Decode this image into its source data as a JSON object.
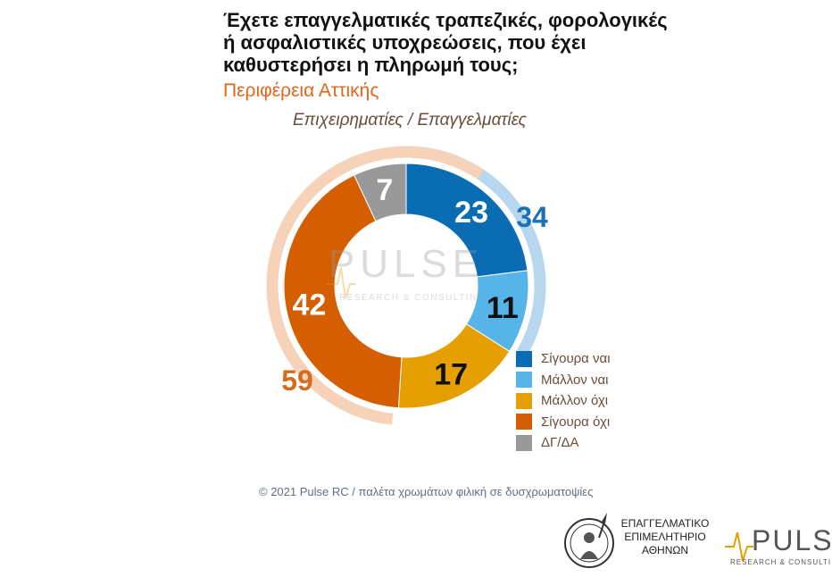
{
  "title": {
    "line1": "Έχετε επαγγελματικές τραπεζικές, φορολογικές",
    "line2": "ή ασφαλιστικές υποχρεώσεις, που έχει",
    "line3": "καθυστερήσει η πληρωμή τους;"
  },
  "subtitle": "Περιφέρεια Αττικής",
  "segment_label": "Επιχειρηματίες / Επαγγελματίες",
  "chart_data": {
    "type": "pie",
    "variant": "donut",
    "categories": [
      "Σίγουρα ναι",
      "Μάλλον ναι",
      "Μάλλον όχι",
      "Σίγουρα όχι",
      "ΔΓ/ΔΑ"
    ],
    "values": [
      23,
      11,
      17,
      42,
      7
    ],
    "colors": [
      "#0a6db3",
      "#56b4e9",
      "#e69f00",
      "#d55e00",
      "#999999"
    ],
    "value_label_colors": [
      "#ffffff",
      "#111111",
      "#111111",
      "#ffffff",
      "#ffffff"
    ],
    "outer_groups": [
      {
        "value": 34,
        "color": "#b6d7ee",
        "label_color": "#1b71b5"
      },
      {
        "value": 59,
        "color": "#f6d2b8",
        "label_color": "#d86a1e"
      }
    ],
    "legend_position": "bottom-right"
  },
  "footer": "© 2021 Pulse RC  /  παλέτα χρωμάτων φιλική σε δυσχρωματοψίες",
  "watermark": {
    "brand": "PULSE",
    "tag": "RESEARCH & CONSULTING"
  },
  "chamber": {
    "line1": "ΕΠΑΓΓΕΛΜΑΤΙΚΟ",
    "line2": "ΕΠΙΜΕΛΗΤΗΡΙΟ",
    "line3": "ΑΘΗΝΩΝ"
  },
  "pulse_logo": {
    "brand": "PULSE",
    "tag": "RESEARCH & CONSULTING"
  }
}
